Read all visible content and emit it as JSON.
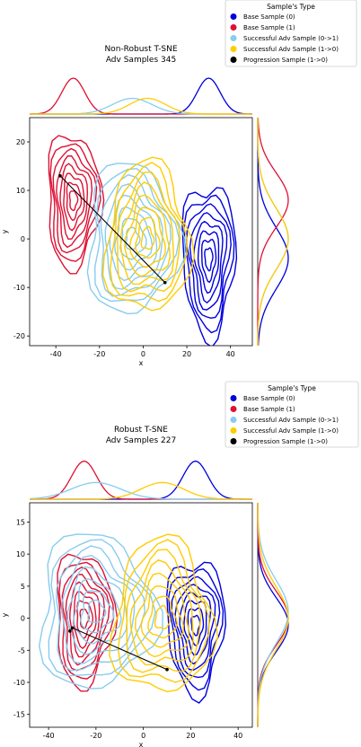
{
  "chart_data": [
    {
      "type": "kde-contour",
      "title": "Non-Robust T-SNE",
      "subtitle": "Adv Samples 345",
      "xlabel": "x",
      "ylabel": "y",
      "xlim": [
        -52,
        50
      ],
      "ylim": [
        -22,
        25
      ],
      "xticks": [
        -40,
        -20,
        0,
        20,
        40
      ],
      "yticks": [
        -20,
        -10,
        0,
        10,
        20
      ],
      "legend": {
        "title": "Sample's Type",
        "placement": "top-right",
        "entries": [
          "Base Sample (0)",
          "Base Sample (1)",
          "Successful Adv Sample (0->1)",
          "Successful Adv Sample (1->0)",
          "Progression Sample (1->0)"
        ]
      },
      "series": [
        {
          "label": "Base Sample (0)",
          "color": "#0000dd",
          "cx": 30,
          "cy": -4,
          "sx": 7,
          "sy": 9
        },
        {
          "label": "Base Sample (1)",
          "color": "#dd1133",
          "cx": -32,
          "cy": 8,
          "sx": 7,
          "sy": 8
        },
        {
          "label": "Successful Adv Sample (0->1)",
          "color": "#88ccee",
          "cx": -5,
          "cy": 0,
          "sx": 12,
          "sy": 9
        },
        {
          "label": "Successful Adv Sample (1->0)",
          "color": "#ffcc00",
          "cx": 2,
          "cy": 0,
          "sx": 11,
          "sy": 9
        }
      ],
      "progression": {
        "color": "#000000",
        "points": [
          [
            -38,
            13
          ],
          [
            10,
            -9
          ]
        ]
      }
    },
    {
      "type": "kde-contour",
      "title": "Robust T-SNE",
      "subtitle": "Adv Samples 227",
      "xlabel": "x",
      "ylabel": "y",
      "xlim": [
        -48,
        46
      ],
      "ylim": [
        -17,
        18
      ],
      "xticks": [
        -40,
        -20,
        0,
        20,
        40
      ],
      "yticks": [
        -15,
        -10,
        -5,
        0,
        5,
        10,
        15
      ],
      "legend": {
        "title": "Sample's Type",
        "placement": "top-right",
        "entries": [
          "Base Sample (0)",
          "Base Sample (1)",
          "Successful Adv Sample (0->1)",
          "Successful Adv Sample (1->0)",
          "Progression Sample (1->0)"
        ]
      },
      "series": [
        {
          "label": "Base Sample (0)",
          "color": "#0000dd",
          "cx": 22,
          "cy": -1,
          "sx": 7,
          "sy": 6
        },
        {
          "label": "Base Sample (1)",
          "color": "#dd1133",
          "cx": -25,
          "cy": 0,
          "sx": 7,
          "sy": 6
        },
        {
          "label": "Successful Adv Sample (0->1)",
          "color": "#88ccee",
          "cx": -20,
          "cy": 1,
          "sx": 14,
          "sy": 7
        },
        {
          "label": "Successful Adv Sample (1->0)",
          "color": "#ffcc00",
          "cx": 8,
          "cy": 0,
          "sx": 12,
          "sy": 7
        }
      ],
      "progression": {
        "color": "#000000",
        "points": [
          [
            -31,
            -2
          ],
          [
            -30,
            -1.5
          ],
          [
            10,
            -8
          ]
        ]
      }
    }
  ]
}
